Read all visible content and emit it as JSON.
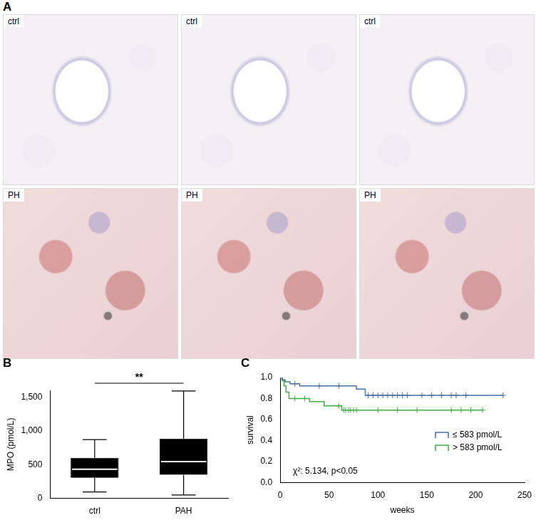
{
  "panel_A": {
    "label": "A",
    "images": [
      {
        "label": "ctrl"
      },
      {
        "label": "ctrl"
      },
      {
        "label": "ctrl"
      },
      {
        "label": "PH"
      },
      {
        "label": "PH"
      },
      {
        "label": "PH"
      }
    ]
  },
  "chart_data": [
    {
      "panel_label": "B",
      "type": "box",
      "categories": [
        "ctrl",
        "PAH"
      ],
      "boxes": [
        {
          "min": 95,
          "q1": 305,
          "median": 430,
          "q3": 600,
          "max": 870
        },
        {
          "min": 50,
          "q1": 350,
          "median": 545,
          "q3": 885,
          "max": 1590
        }
      ],
      "color": "#000000",
      "y_label": "MPO (pmol/L)",
      "ylim": [
        0,
        1600
      ],
      "yticks": [
        0,
        500,
        {
          "value": 1000,
          "label": "1,000"
        },
        {
          "value": 1500,
          "label": "1,500"
        }
      ],
      "annotation": "**",
      "grid": false
    },
    {
      "panel_label": "C",
      "type": "line",
      "x_label": "weeks",
      "y_label": "survival",
      "xlim": [
        0,
        250
      ],
      "xticks": [
        0,
        50,
        100,
        150,
        200,
        250
      ],
      "ylim": [
        0,
        1
      ],
      "yticks": [
        {
          "value": 0,
          "label": "0.0"
        },
        0.2,
        0.4,
        0.6,
        0.8,
        {
          "value": 1,
          "label": "1.0"
        }
      ],
      "line_style": "step",
      "marker": "cross",
      "legend": "right",
      "grid": false,
      "annotation": "χ²: 5.134, p<0.05",
      "series": [
        {
          "name": "≤ 583 pmol/L",
          "color": "#4a6fa5",
          "x": [
            0,
            2,
            5,
            10,
            20,
            78,
            87,
            228
          ],
          "values": [
            1.0,
            0.98,
            0.96,
            0.94,
            0.92,
            0.89,
            0.83,
            0.83
          ],
          "censored": [
            15,
            40,
            60,
            90,
            95,
            100,
            105,
            110,
            115,
            120,
            125,
            130,
            145,
            155,
            165,
            175,
            180,
            190,
            228
          ]
        },
        {
          "name": "> 583 pmol/L",
          "color": "#3cb043",
          "x": [
            0,
            2,
            4,
            6,
            9,
            30,
            45,
            63,
            207
          ],
          "values": [
            1.0,
            0.97,
            0.92,
            0.86,
            0.8,
            0.77,
            0.73,
            0.69,
            0.69
          ],
          "censored": [
            15,
            25,
            60,
            65,
            67,
            70,
            72,
            75,
            78,
            100,
            120,
            140,
            175,
            185,
            195,
            207
          ]
        }
      ]
    }
  ]
}
